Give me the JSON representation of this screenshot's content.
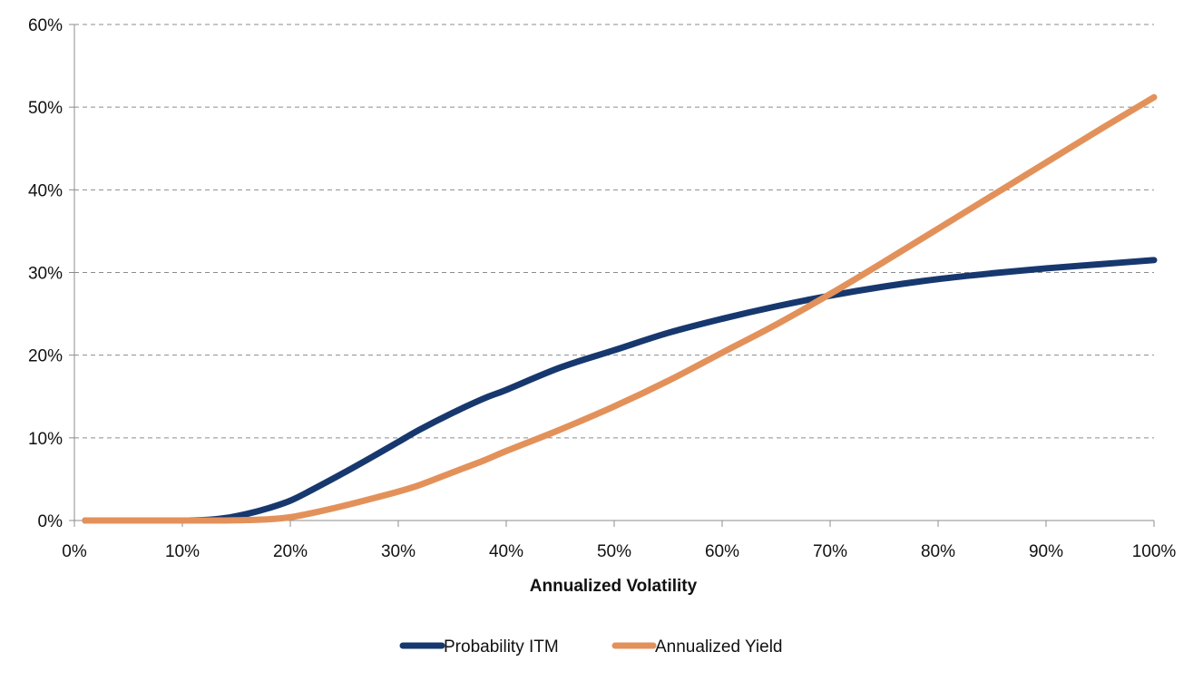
{
  "chart_data": {
    "type": "line",
    "title": "",
    "xlabel": "Annualized Volatility",
    "ylabel": "",
    "xlim": [
      0,
      100
    ],
    "ylim": [
      0,
      60
    ],
    "x_ticks": [
      "0%",
      "10%",
      "20%",
      "30%",
      "40%",
      "50%",
      "60%",
      "70%",
      "80%",
      "90%",
      "100%"
    ],
    "y_ticks": [
      "0%",
      "10%",
      "20%",
      "30%",
      "40%",
      "50%",
      "60%"
    ],
    "grid": "horizontal dashed",
    "legend_position": "bottom",
    "x": [
      1,
      5,
      10,
      12,
      14,
      16,
      18,
      20,
      22,
      25,
      28,
      30,
      32,
      35,
      38,
      40,
      45,
      50,
      55,
      60,
      65,
      70,
      75,
      80,
      85,
      90,
      95,
      100
    ],
    "series": [
      {
        "name": "Probability ITM",
        "color": "#17386e",
        "values": [
          0,
          0,
          0,
          0.05,
          0.3,
          0.8,
          1.5,
          2.4,
          3.7,
          5.8,
          8.0,
          9.5,
          11.0,
          13.0,
          14.8,
          15.8,
          18.5,
          20.6,
          22.7,
          24.4,
          25.9,
          27.2,
          28.3,
          29.2,
          29.9,
          30.5,
          31.0,
          31.5
        ]
      },
      {
        "name": "Annualized Yield",
        "color": "#e3915a",
        "values": [
          0,
          0,
          0,
          0,
          0,
          0.05,
          0.15,
          0.4,
          0.9,
          1.8,
          2.8,
          3.5,
          4.3,
          5.8,
          7.3,
          8.4,
          11.0,
          13.8,
          16.9,
          20.3,
          23.7,
          27.4,
          31.3,
          35.3,
          39.3,
          43.3,
          47.3,
          51.2
        ]
      }
    ]
  }
}
